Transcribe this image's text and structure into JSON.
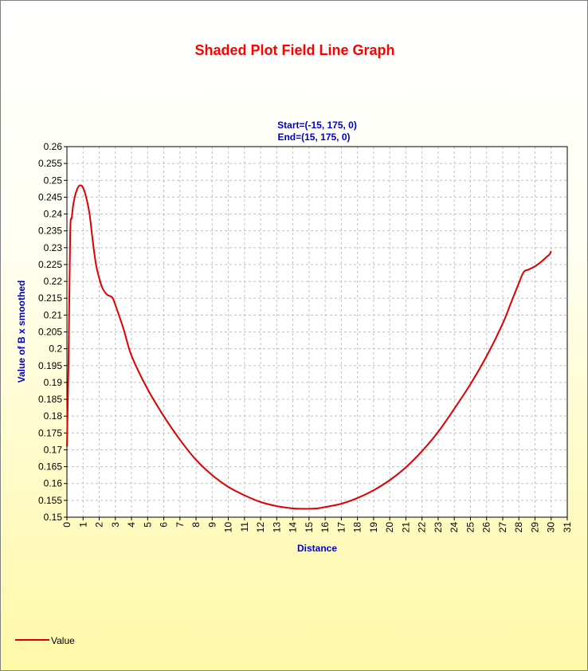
{
  "chart_data": {
    "type": "line",
    "title": "Shaded Plot Field Line Graph",
    "subtitle": [
      "Start=(-15, 175, 0)",
      "End=(15, 175, 0)"
    ],
    "xlabel": "Distance",
    "ylabel": "Value of B x smoothed",
    "xlim": [
      0,
      31
    ],
    "ylim": [
      0.15,
      0.26
    ],
    "xticks": [
      "0",
      "1",
      "2",
      "3",
      "4",
      "5",
      "6",
      "7",
      "8",
      "9",
      "10",
      "11",
      "12",
      "13",
      "14",
      "15",
      "16",
      "17",
      "18",
      "19",
      "20",
      "21",
      "22",
      "23",
      "24",
      "25",
      "26",
      "27",
      "28",
      "29",
      "30",
      "31"
    ],
    "yticks": [
      "0.15",
      "0.155",
      "0.16",
      "0.165",
      "0.17",
      "0.175",
      "0.18",
      "0.185",
      "0.19",
      "0.195",
      "0.2",
      "0.205",
      "0.21",
      "0.215",
      "0.22",
      "0.225",
      "0.23",
      "0.235",
      "0.24",
      "0.245",
      "0.25",
      "0.255",
      "0.26"
    ],
    "grid": true,
    "legend_position": "bottom-left",
    "colors": {
      "title": "#ff0000",
      "subtitle": "#0000cc",
      "axis_label": "#0000cc",
      "series": "#dd0000",
      "grid": "#c0c0c0"
    },
    "series": [
      {
        "name": "Value",
        "x": [
          0,
          0.1,
          0.2,
          0.3,
          0.4,
          0.6,
          0.8,
          1.0,
          1.2,
          1.4,
          1.6,
          1.8,
          2.0,
          2.2,
          2.5,
          2.8,
          3.0,
          3.5,
          4.0,
          5.0,
          6.0,
          7.0,
          8.0,
          9.0,
          10.0,
          11.0,
          12.0,
          13.0,
          14.0,
          14.5,
          15.0,
          15.5,
          16.0,
          17.0,
          18.0,
          19.0,
          20.0,
          21.0,
          22.0,
          23.0,
          24.0,
          25.0,
          26.0,
          27.0,
          27.5,
          28.0,
          28.3,
          28.6,
          29.0,
          29.3,
          29.5,
          29.7,
          29.9,
          30.0
        ],
        "y": [
          0.171,
          0.196,
          0.234,
          0.239,
          0.243,
          0.247,
          0.2485,
          0.2478,
          0.2448,
          0.24,
          0.232,
          0.225,
          0.221,
          0.218,
          0.216,
          0.2153,
          0.213,
          0.206,
          0.198,
          0.188,
          0.18,
          0.173,
          0.167,
          0.1625,
          0.159,
          0.1565,
          0.1545,
          0.1533,
          0.1526,
          0.1525,
          0.1525,
          0.1526,
          0.153,
          0.154,
          0.1557,
          0.158,
          0.161,
          0.1648,
          0.1696,
          0.1753,
          0.1822,
          0.1895,
          0.1978,
          0.2075,
          0.2135,
          0.2195,
          0.2228,
          0.2235,
          0.2245,
          0.2255,
          0.2263,
          0.2272,
          0.228,
          0.229
        ]
      }
    ]
  }
}
